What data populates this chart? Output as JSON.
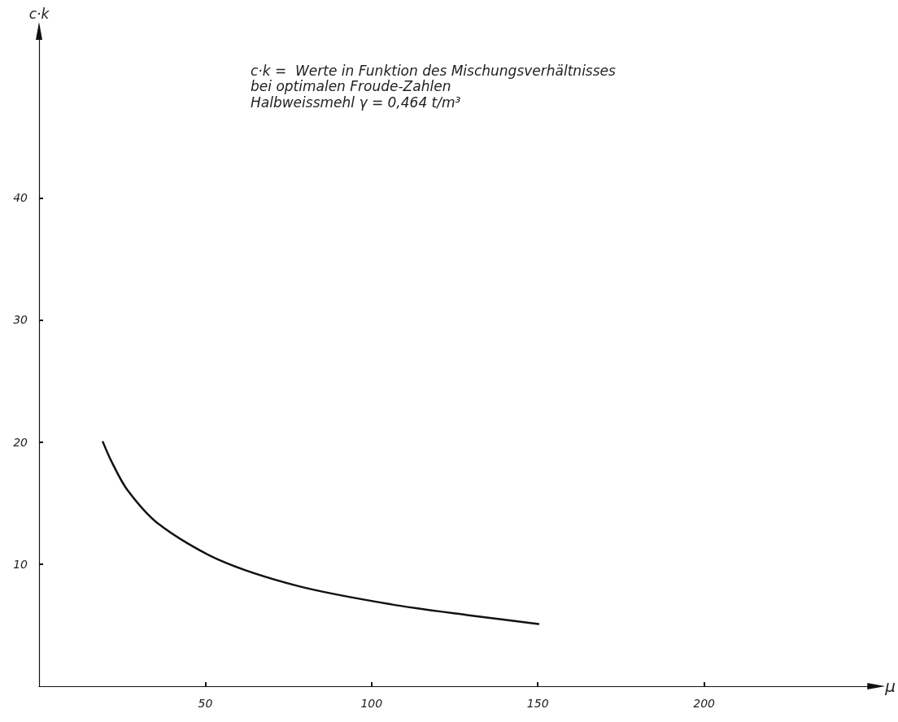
{
  "chart_data": {
    "type": "line",
    "xlabel": "μ",
    "ylabel": "c·k",
    "annotations": [
      "c·k =  Werte in Funktion des Mischungsverhältnisses",
      "bei optimalen Froude-Zahlen",
      "Halbweissmehl γ = 0,464 t/m³"
    ],
    "series": [
      {
        "color": "#111111",
        "x": [
          19.2,
          21.8,
          26.5,
          35.9,
          53.7,
          78,
          106,
          129.7,
          150.2
        ],
        "values": [
          20.0,
          18.4,
          16.1,
          13.3,
          10.4,
          8.2,
          6.7,
          5.8,
          5.1
        ]
      }
    ],
    "xlim": [
      0,
      253
    ],
    "xticks": [
      50,
      100,
      150,
      200
    ],
    "ylim": [
      0,
      54
    ],
    "yticks": [
      10,
      20,
      30,
      40
    ],
    "grid": false,
    "marker": "none",
    "line_style": "solid"
  }
}
